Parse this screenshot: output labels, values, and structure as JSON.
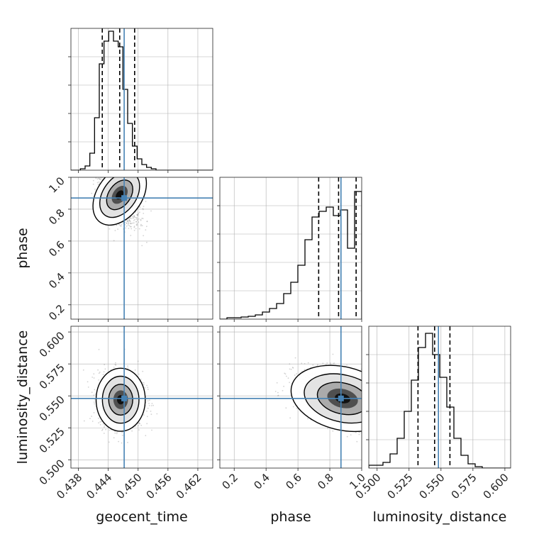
{
  "chart_data": {
    "type": "corner",
    "parameters": [
      "geocent_time",
      "phase",
      "luminosity_distance"
    ],
    "axis_labels": {
      "geocent_time": "geocent_time",
      "phase": "phase",
      "luminosity_distance": "luminosity_distance"
    },
    "ranges": {
      "geocent_time": [
        0.4365,
        0.465
      ],
      "phase": [
        0.11,
        1.0
      ],
      "luminosity_distance": [
        0.4935,
        0.6045
      ]
    },
    "ticks": {
      "geocent_time": [
        0.438,
        0.444,
        0.45,
        0.456,
        0.462
      ],
      "phase": [
        0.2,
        0.4,
        0.6,
        0.8,
        1.0
      ],
      "phase_y": [
        0.2,
        0.4,
        0.6,
        0.8,
        1.0
      ],
      "luminosity_distance": [
        0.5,
        0.525,
        0.55,
        0.575,
        0.6
      ]
    },
    "tick_labels": {
      "geocent_time": [
        "0.438",
        "0.444",
        "0.450",
        "0.456",
        "0.462"
      ],
      "phase": [
        "0.2",
        "0.4",
        "0.6",
        "0.8",
        "1.0"
      ],
      "phase_y": [
        "0.2",
        "0.4",
        "0.6",
        "0.8",
        "1.0"
      ],
      "luminosity_distance": [
        "0.500",
        "0.525",
        "0.550",
        "0.575",
        "0.600"
      ]
    },
    "truths": {
      "geocent_time": 0.4472,
      "phase": 0.87,
      "luminosity_distance": 0.548
    },
    "quantiles": {
      "geocent_time": [
        0.4428,
        0.4463,
        0.4493
      ],
      "phase": [
        0.73,
        0.855,
        0.965
      ],
      "luminosity_distance": [
        0.532,
        0.545,
        0.557
      ]
    },
    "histograms": {
      "geocent_time": {
        "edges": [
          0.4365,
          0.43745,
          0.4384,
          0.43935,
          0.4403,
          0.44125,
          0.4422,
          0.44315,
          0.4441,
          0.44505,
          0.446,
          0.44695,
          0.4479,
          0.44885,
          0.4498,
          0.45075,
          0.4517,
          0.45265,
          0.4536,
          0.45455,
          0.4555,
          0.45645,
          0.4574,
          0.45835,
          0.4593,
          0.46025,
          0.4612,
          0.46215,
          0.4631,
          0.46405,
          0.465
        ],
        "counts": [
          0,
          0,
          0.01,
          0.03,
          0.12,
          0.37,
          0.75,
          0.91,
          0.98,
          0.91,
          0.87,
          0.57,
          0.33,
          0.17,
          0.08,
          0.04,
          0.02,
          0.01,
          0,
          0,
          0,
          0,
          0,
          0,
          0,
          0,
          0,
          0,
          0,
          0
        ]
      },
      "phase": {
        "edges": [
          0.11,
          0.1545,
          0.199,
          0.2435,
          0.288,
          0.3325,
          0.377,
          0.4215,
          0.466,
          0.5105,
          0.555,
          0.5995,
          0.644,
          0.6885,
          0.733,
          0.7775,
          0.822,
          0.8665,
          0.911,
          0.9555,
          1.0
        ],
        "counts": [
          0,
          0.01,
          0.01,
          0.015,
          0.02,
          0.03,
          0.05,
          0.075,
          0.11,
          0.18,
          0.26,
          0.38,
          0.56,
          0.72,
          0.76,
          0.79,
          0.73,
          0.77,
          0.5,
          0.9
        ]
      },
      "luminosity_distance": {
        "edges": [
          0.4935,
          0.49905,
          0.5046,
          0.51015,
          0.5157,
          0.52125,
          0.5268,
          0.53235,
          0.5379,
          0.54345,
          0.549,
          0.55455,
          0.5601,
          0.56565,
          0.5712,
          0.57675,
          0.5823,
          0.58785,
          0.5934,
          0.59895,
          0.6045
        ],
        "counts": [
          0.02,
          0.02,
          0.04,
          0.1,
          0.21,
          0.4,
          0.62,
          0.85,
          0.95,
          0.8,
          0.64,
          0.43,
          0.21,
          0.09,
          0.03,
          0.01,
          0,
          0,
          0,
          0
        ]
      }
    },
    "density_2d": {
      "geocent_time__phase": {
        "mean": [
          0.4463,
          0.89
        ],
        "std": [
          0.0019,
          0.09
        ],
        "corr": -0.55,
        "levels": [
          0.5,
          0.8,
          0.95
        ]
      },
      "geocent_time__luminosity_distance": {
        "mean": [
          0.4465,
          0.547
        ],
        "std": [
          0.0021,
          0.0105
        ],
        "corr": 0.0,
        "levels": [
          0.5,
          0.8,
          0.95
        ]
      },
      "phase__luminosity_distance": {
        "mean": [
          0.88,
          0.548
        ],
        "std": [
          0.14,
          0.0105
        ],
        "corr": -0.45,
        "levels": [
          0.5,
          0.8,
          0.95
        ]
      }
    },
    "colors": {
      "truth": "#4682b4",
      "histogram": "#000000",
      "quantile": "#000000",
      "grid": "#b0b0b0",
      "scatter": "#808080"
    },
    "grid": true
  }
}
